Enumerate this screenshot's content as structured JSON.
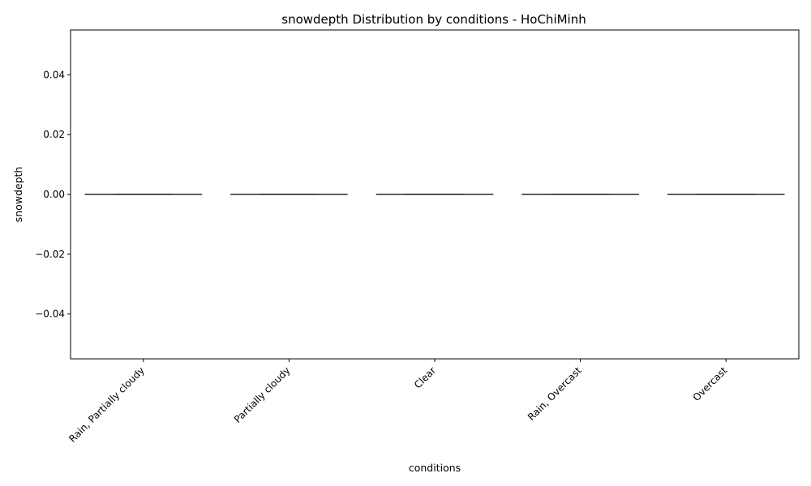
{
  "chart_data": {
    "type": "box",
    "title": "snowdepth Distribution by conditions - HoChiMinh",
    "xlabel": "conditions",
    "ylabel": "snowdepth",
    "categories": [
      "Rain, Partially cloudy",
      "Partially cloudy",
      "Clear",
      "Rain, Overcast",
      "Overcast"
    ],
    "ylim": [
      -0.055,
      0.055
    ],
    "yticks": [
      -0.04,
      -0.02,
      0.0,
      0.02,
      0.04
    ],
    "ytick_labels": [
      "−0.04",
      "−0.02",
      "0.00",
      "0.02",
      "0.04"
    ],
    "series": [
      {
        "values": [
          {
            "min": 0,
            "q1": 0,
            "median": 0,
            "q3": 0,
            "max": 0
          },
          {
            "min": 0,
            "q1": 0,
            "median": 0,
            "q3": 0,
            "max": 0
          },
          {
            "min": 0,
            "q1": 0,
            "median": 0,
            "q3": 0,
            "max": 0
          },
          {
            "min": 0,
            "q1": 0,
            "median": 0,
            "q3": 0,
            "max": 0
          },
          {
            "min": 0,
            "q1": 0,
            "median": 0,
            "q3": 0,
            "max": 0
          }
        ]
      }
    ],
    "grid": false,
    "colors": {
      "line": "#3f3f3f",
      "axis": "#000000",
      "background": "#ffffff"
    }
  }
}
